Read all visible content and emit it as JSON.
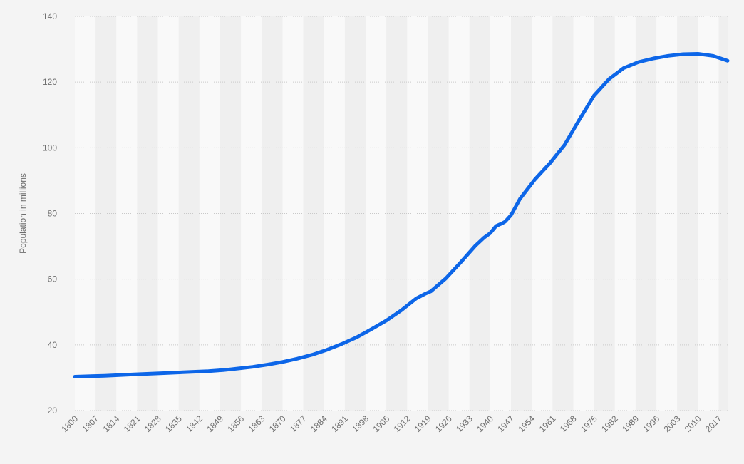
{
  "colors": {
    "background": "#f4f4f4",
    "band_light": "#f9f9f9",
    "band_dark": "#efefef",
    "grid": "#c9c9c9",
    "axis_text": "#6e6e6e",
    "series_line": "#0d66e8"
  },
  "chart_data": {
    "type": "line",
    "title": "",
    "xlabel": "",
    "ylabel": "Population in millions",
    "ylim": [
      20,
      140
    ],
    "xlim": [
      1800,
      2020
    ],
    "y_ticks": [
      20,
      40,
      60,
      80,
      100,
      120,
      140
    ],
    "x_tick_labels": [
      "1800",
      "1807",
      "1814",
      "1821",
      "1828",
      "1835",
      "1842",
      "1849",
      "1856",
      "1863",
      "1870",
      "1877",
      "1884",
      "1891",
      "1898",
      "1905",
      "1912",
      "1919",
      "1926",
      "1933",
      "1940",
      "1947",
      "1954",
      "1961",
      "1968",
      "1975",
      "1982",
      "1989",
      "1996",
      "2003",
      "2010",
      "2017"
    ],
    "grid": true,
    "legend": "none",
    "series": [
      {
        "x": [
          1800,
          1810,
          1820,
          1830,
          1840,
          1845,
          1850,
          1855,
          1860,
          1865,
          1870,
          1875,
          1880,
          1885,
          1890,
          1895,
          1900,
          1905,
          1910,
          1915,
          1918,
          1920,
          1925,
          1930,
          1935,
          1938,
          1940,
          1942,
          1944,
          1945,
          1947,
          1950,
          1955,
          1960,
          1965,
          1970,
          1975,
          1980,
          1985,
          1990,
          1995,
          2000,
          2005,
          2010,
          2015,
          2020
        ],
        "y": [
          30.3,
          30.6,
          31.0,
          31.4,
          31.8,
          32.0,
          32.3,
          32.8,
          33.3,
          34.0,
          34.8,
          35.8,
          37.0,
          38.5,
          40.3,
          42.3,
          44.8,
          47.4,
          50.5,
          54.1,
          55.5,
          56.3,
          60.2,
          65.1,
          70.2,
          72.7,
          74.0,
          76.2,
          77.0,
          77.5,
          79.5,
          84.4,
          90.3,
          95.2,
          100.8,
          108.5,
          115.9,
          120.9,
          124.3,
          126.1,
          127.2,
          128.0,
          128.5,
          128.6,
          128.0,
          126.5
        ]
      }
    ]
  }
}
